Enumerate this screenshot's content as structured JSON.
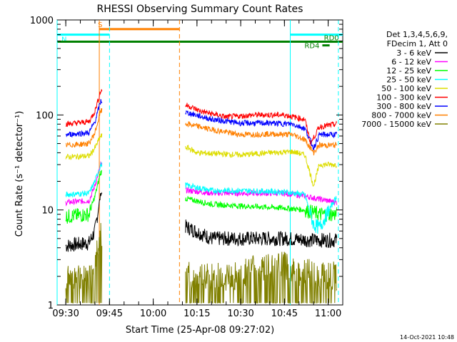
{
  "chart_data": {
    "type": "line",
    "title": "RHESSI Observing Summary Count Rates",
    "xlabel": "Start Time (25-Apr-08 09:27:02)",
    "ylabel": "Count Rate (s⁻¹ detector⁻¹)",
    "x_unit": "UT time",
    "xlim": [
      "09:27:02",
      "11:05:00"
    ],
    "ylim": [
      1,
      1000
    ],
    "yscale": "log",
    "x_ticks": [
      "09:30",
      "09:45",
      "10:00",
      "10:15",
      "10:30",
      "10:45",
      "11:00"
    ],
    "y_ticks": [
      {
        "value": 1,
        "label": "1"
      },
      {
        "value": 10,
        "label": "10"
      },
      {
        "value": 100,
        "label": "100"
      },
      {
        "value": 1000,
        "label": "1000"
      }
    ],
    "legend_placement": "right",
    "legend_header": [
      "Det 1,3,4,5,6,9,",
      "FDecim 1, Att 0"
    ],
    "footer_date": "14-Oct-2021 10:48",
    "series": [
      {
        "name": "3 - 6 keV",
        "color": "#000000",
        "points": [
          [
            "09:30",
            4.2
          ],
          [
            "09:38",
            4.5
          ],
          [
            "09:40",
            6
          ],
          [
            "09:42",
            15
          ],
          [
            "10:12",
            6.5
          ],
          [
            "10:20",
            5
          ],
          [
            "10:30",
            5
          ],
          [
            "10:45",
            5
          ],
          [
            "10:55",
            4.8
          ],
          [
            "11:03",
            4.8
          ]
        ]
      },
      {
        "name": "6 - 12 keV",
        "color": "#ff00ff",
        "points": [
          [
            "09:30",
            12
          ],
          [
            "09:38",
            12.5
          ],
          [
            "09:40",
            18
          ],
          [
            "09:42",
            30
          ],
          [
            "10:12",
            16
          ],
          [
            "10:20",
            15
          ],
          [
            "10:30",
            15
          ],
          [
            "10:45",
            15
          ],
          [
            "10:52",
            14
          ],
          [
            "10:57",
            13
          ],
          [
            "11:03",
            12
          ]
        ]
      },
      {
        "name": "12 - 25 keV",
        "color": "#00ff00",
        "points": [
          [
            "09:30",
            8.5
          ],
          [
            "09:38",
            9
          ],
          [
            "09:40",
            14
          ],
          [
            "09:42",
            25
          ],
          [
            "10:12",
            13
          ],
          [
            "10:20",
            11.5
          ],
          [
            "10:30",
            11
          ],
          [
            "10:45",
            10.5
          ],
          [
            "10:52",
            10
          ],
          [
            "10:57",
            9
          ],
          [
            "11:03",
            9
          ]
        ]
      },
      {
        "name": "25 - 50 keV",
        "color": "#00ffff",
        "points": [
          [
            "09:30",
            14.5
          ],
          [
            "09:38",
            15
          ],
          [
            "09:40",
            20
          ],
          [
            "09:42",
            30
          ],
          [
            "10:12",
            18
          ],
          [
            "10:20",
            16
          ],
          [
            "10:30",
            16
          ],
          [
            "10:45",
            15.5
          ],
          [
            "10:52",
            14.5
          ],
          [
            "10:55",
            7
          ],
          [
            "10:57",
            6.5
          ],
          [
            "11:03",
            14
          ]
        ]
      },
      {
        "name": "50 - 100 keV",
        "color": "#dddd00",
        "points": [
          [
            "09:30",
            36
          ],
          [
            "09:38",
            37
          ],
          [
            "09:40",
            45
          ],
          [
            "09:42",
            60
          ],
          [
            "10:12",
            45
          ],
          [
            "10:15",
            40
          ],
          [
            "10:30",
            38
          ],
          [
            "10:40",
            40
          ],
          [
            "10:48",
            41
          ],
          [
            "10:52",
            38
          ],
          [
            "10:55",
            18
          ],
          [
            "10:57",
            30
          ],
          [
            "11:03",
            30
          ]
        ]
      },
      {
        "name": "100 - 300 keV",
        "color": "#ff0000",
        "points": [
          [
            "09:30",
            80
          ],
          [
            "09:38",
            85
          ],
          [
            "09:40",
            110
          ],
          [
            "09:42",
            180
          ],
          [
            "10:12",
            125
          ],
          [
            "10:16",
            110
          ],
          [
            "10:25",
            95
          ],
          [
            "10:35",
            100
          ],
          [
            "10:45",
            100
          ],
          [
            "10:52",
            90
          ],
          [
            "10:54",
            50
          ],
          [
            "10:57",
            75
          ],
          [
            "11:03",
            80
          ]
        ]
      },
      {
        "name": "300 - 800 keV",
        "color": "#0000ff",
        "points": [
          [
            "09:30",
            62
          ],
          [
            "09:38",
            65
          ],
          [
            "09:40",
            85
          ],
          [
            "09:42",
            140
          ],
          [
            "10:12",
            105
          ],
          [
            "10:20",
            90
          ],
          [
            "10:30",
            82
          ],
          [
            "10:40",
            82
          ],
          [
            "10:48",
            80
          ],
          [
            "10:52",
            72
          ],
          [
            "10:55",
            45
          ],
          [
            "10:57",
            62
          ],
          [
            "11:03",
            62
          ]
        ]
      },
      {
        "name": "800 - 7000 keV",
        "color": "#ff8000",
        "points": [
          [
            "09:30",
            48
          ],
          [
            "09:38",
            50
          ],
          [
            "09:40",
            65
          ],
          [
            "09:42",
            110
          ],
          [
            "10:12",
            80
          ],
          [
            "10:20",
            70
          ],
          [
            "10:30",
            62
          ],
          [
            "10:40",
            63
          ],
          [
            "10:48",
            62
          ],
          [
            "10:52",
            55
          ],
          [
            "10:55",
            40
          ],
          [
            "10:57",
            48
          ],
          [
            "11:03",
            48
          ]
        ]
      },
      {
        "name": "7000 - 15000 keV",
        "color": "#808000",
        "points": [
          [
            "09:30",
            2
          ],
          [
            "09:38",
            2
          ],
          [
            "09:40",
            3
          ],
          [
            "09:42",
            6
          ],
          [
            "10:12",
            2
          ],
          [
            "10:20",
            2
          ],
          [
            "10:30",
            2
          ],
          [
            "10:35",
            2.5
          ],
          [
            "10:45",
            2.6
          ],
          [
            "10:50",
            2.2
          ],
          [
            "11:03",
            2
          ]
        ]
      }
    ],
    "state_bars": [
      {
        "label": "S",
        "color": "#ff8000",
        "start": "09:41:30",
        "end": "10:09:00",
        "level": 800
      },
      {
        "label": "N",
        "color": "#00ffff",
        "start": "09:27:02",
        "end": "09:45:00",
        "level": 700
      },
      {
        "label": "",
        "color": "#00ffff",
        "start": "10:47:00",
        "end": "11:05:00",
        "level": 700
      },
      {
        "label": "",
        "color": "#008000",
        "start": "09:27:02",
        "end": "11:05:00",
        "level": 590
      },
      {
        "label": "RD0",
        "color": "#008000",
        "start": "11:00:30",
        "end": "11:03:30",
        "level": 590
      },
      {
        "label": "RD4",
        "color": "#008000",
        "start": "10:58:00",
        "end": "11:00:30",
        "level": 540
      }
    ],
    "vlines": [
      {
        "time": "09:27:02",
        "color": "#00ffff",
        "style": "solid"
      },
      {
        "time": "09:41:30",
        "color": "#ff8000",
        "style": "solid"
      },
      {
        "time": "09:45:00",
        "color": "#00ffff",
        "style": "dashed"
      },
      {
        "time": "10:09:00",
        "color": "#ff8000",
        "style": "dashed"
      },
      {
        "time": "10:47:00",
        "color": "#00ffff",
        "style": "solid"
      },
      {
        "time": "11:03:30",
        "color": "#00ffff",
        "style": "dashed"
      }
    ],
    "gap": {
      "start": "09:42:30",
      "end": "10:11:00"
    }
  }
}
